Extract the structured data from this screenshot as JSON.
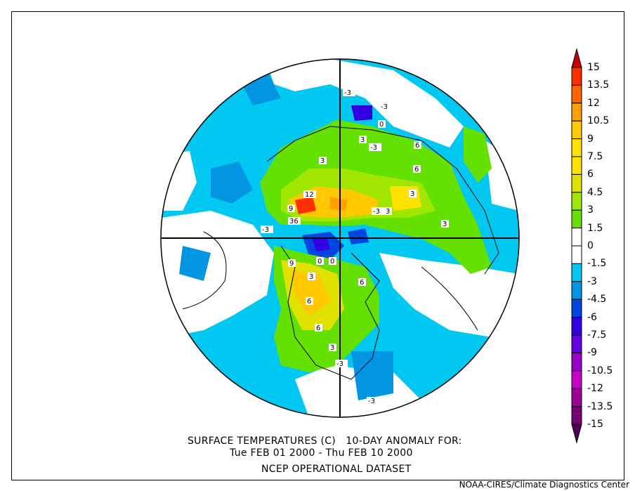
{
  "title": {
    "line1": "SURFACE TEMPERATURES (C)   10-DAY ANOMALY FOR:",
    "line2": "Tue FEB 01 2000 - Thu FEB 10 2000",
    "line3": "NCEP OPERATIONAL DATASET"
  },
  "credit": "NOAA-CIRES/Climate Diagnostics Center",
  "colorbar": {
    "labels": [
      "15",
      "13.5",
      "12",
      "10.5",
      "9",
      "7.5",
      "6",
      "4.5",
      "3",
      "1.5",
      "0",
      "-1.5",
      "-3",
      "-4.5",
      "-6",
      "-7.5",
      "-9",
      "-10.5",
      "-12",
      "-13.5",
      "-15"
    ],
    "over_color": "#c80000",
    "under_color": "#500050",
    "band_colors": [
      "#ff3000",
      "#ff6400",
      "#ffa000",
      "#ffc800",
      "#ffe100",
      "#ffe100",
      "#e1e100",
      "#a0e600",
      "#64e100",
      "#ffffff",
      "#ffffff",
      "#00c8f0",
      "#0096e1",
      "#0046e1",
      "#3200e1",
      "#6400e1",
      "#9600c8",
      "#c800c8",
      "#a00096",
      "#780078"
    ]
  },
  "map": {
    "contour_labels": [
      "-3",
      "-3",
      "0",
      "3",
      "6",
      "12",
      "9",
      "36",
      "-3",
      "0",
      "3",
      "6",
      "3",
      "3",
      "6",
      "9",
      "3",
      "-3",
      "0",
      "-3",
      "6",
      "3",
      "6",
      "3",
      "-3",
      "-3"
    ]
  }
}
